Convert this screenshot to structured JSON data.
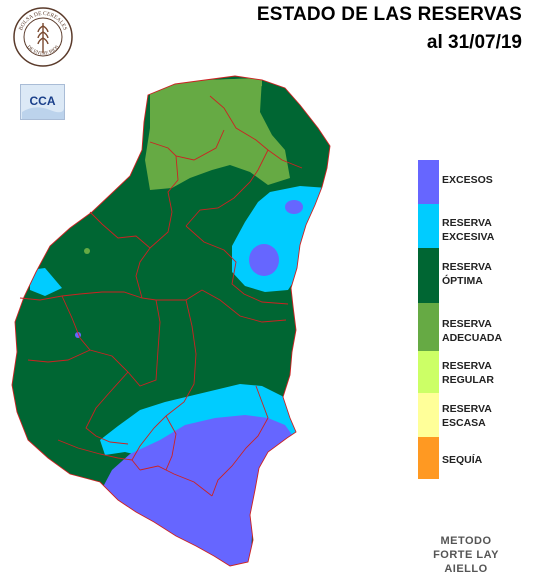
{
  "title": {
    "line1": "ESTADO DE LAS RESERVAS",
    "line2": "al 31/07/19"
  },
  "logos": {
    "bolsa_top": "BOLSA DE CEREALES",
    "bolsa_bottom": "DE ENTRE RIOS",
    "cca": "CCA"
  },
  "legend": [
    {
      "label": "EXCESOS",
      "color": "#6666ff"
    },
    {
      "label": "RESERVA\nEXCESIVA",
      "color": "#00ccff"
    },
    {
      "label": "RESERVA\nÓPTIMA",
      "color": "#006633"
    },
    {
      "label": "RESERVA\nADECUADA",
      "color": "#66aa44"
    },
    {
      "label": "RESERVA\nREGULAR",
      "color": "#ccff66"
    },
    {
      "label": "RESERVA\nESCASA",
      "color": "#ffff99"
    },
    {
      "label": "SEQUÍA",
      "color": "#ff9922"
    }
  ],
  "method": {
    "line1": "METODO",
    "line2": "FORTE LAY",
    "line3": "AIELLO"
  },
  "colors": {
    "excesos": "#6666ff",
    "excesiva": "#00ccff",
    "optima": "#006633",
    "adecuada": "#66aa44",
    "border": "#cc2222"
  }
}
